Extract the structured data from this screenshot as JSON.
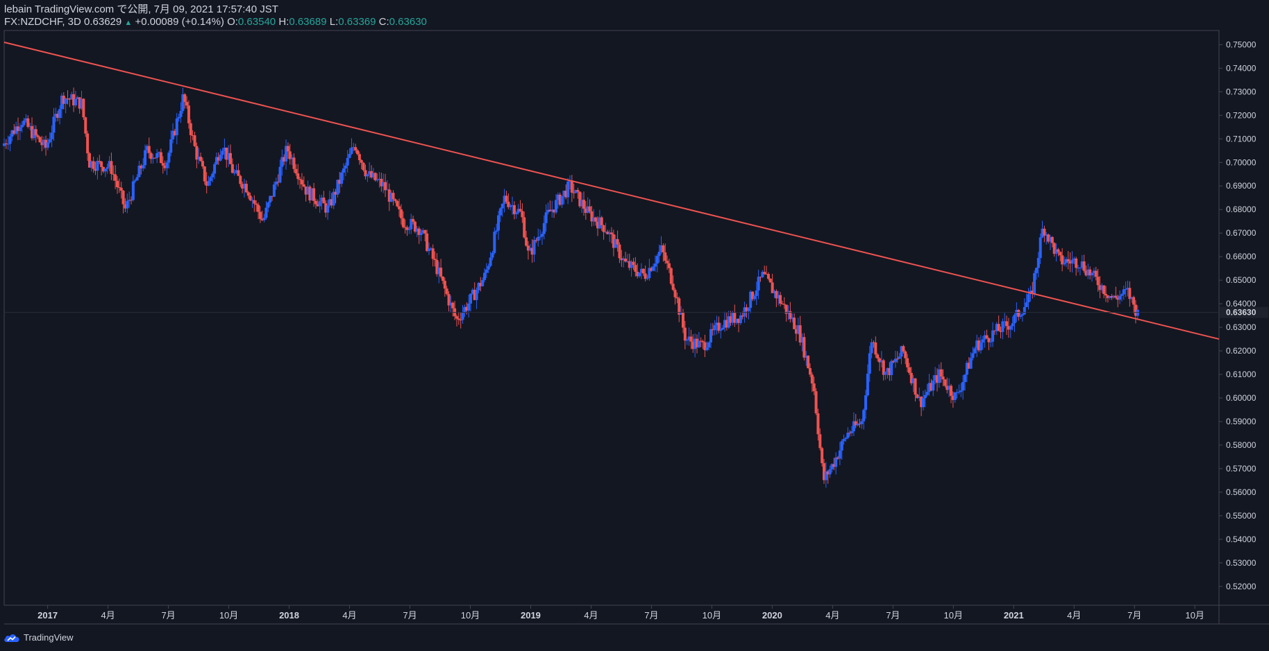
{
  "header": {
    "line1": "lebain TradingView.com で公開, 7月 09, 2021 17:57:40 JST",
    "symbol": "FX:NZDCHF, 3D 0.63629",
    "change_arrow": "▲",
    "change": "+0.00089 (+0.14%)",
    "o_label": "O:",
    "o_value": "0.63540",
    "h_label": "H:",
    "h_value": "0.63689",
    "l_label": "L:",
    "l_value": "0.63369",
    "c_label": "C:",
    "c_value": "0.63630"
  },
  "footer": {
    "logo_text": "TradingView",
    "logo_icon": "tradingview-cloud-icon"
  },
  "colors": {
    "background": "#131722",
    "up": "#2962ff",
    "down": "#ef5350",
    "trendline": "#ef5350",
    "text": "#d1d4dc",
    "accent_green": "#26a69a"
  },
  "chart_data": {
    "type": "candlestick",
    "symbol": "FX:NZDCHF",
    "interval": "3D",
    "current_price": "0.63630",
    "y_range": [
      0.512,
      0.756
    ],
    "y_ticks": [
      "0.75000",
      "0.74000",
      "0.73000",
      "0.72000",
      "0.71000",
      "0.70000",
      "0.69000",
      "0.68000",
      "0.67000",
      "0.66000",
      "0.65000",
      "0.64000",
      "0.63000",
      "0.62000",
      "0.61000",
      "0.60000",
      "0.59000",
      "0.58000",
      "0.57000",
      "0.56000",
      "0.55000",
      "0.54000",
      "0.53000",
      "0.52000"
    ],
    "x_ticks": [
      {
        "label": "2017",
        "t": 2017.0,
        "major": true
      },
      {
        "label": "4月",
        "t": 2017.25,
        "major": false
      },
      {
        "label": "7月",
        "t": 2017.5,
        "major": false
      },
      {
        "label": "10月",
        "t": 2017.75,
        "major": false
      },
      {
        "label": "2018",
        "t": 2018.0,
        "major": true
      },
      {
        "label": "4月",
        "t": 2018.25,
        "major": false
      },
      {
        "label": "7月",
        "t": 2018.5,
        "major": false
      },
      {
        "label": "10月",
        "t": 2018.75,
        "major": false
      },
      {
        "label": "2019",
        "t": 2019.0,
        "major": true
      },
      {
        "label": "4月",
        "t": 2019.25,
        "major": false
      },
      {
        "label": "7月",
        "t": 2019.5,
        "major": false
      },
      {
        "label": "10月",
        "t": 2019.75,
        "major": false
      },
      {
        "label": "2020",
        "t": 2020.0,
        "major": true
      },
      {
        "label": "4月",
        "t": 2020.25,
        "major": false
      },
      {
        "label": "7月",
        "t": 2020.5,
        "major": false
      },
      {
        "label": "10月",
        "t": 2020.75,
        "major": false
      },
      {
        "label": "2021",
        "t": 2021.0,
        "major": true
      },
      {
        "label": "4月",
        "t": 2021.25,
        "major": false
      },
      {
        "label": "7月",
        "t": 2021.5,
        "major": false
      },
      {
        "label": "10月",
        "t": 2021.75,
        "major": false
      }
    ],
    "x_range": [
      2016.82,
      2021.85
    ],
    "trendline": {
      "start": {
        "t": 2016.82,
        "price": 0.751
      },
      "end": {
        "t": 2021.85,
        "price": 0.625
      }
    },
    "price_path": [
      {
        "t": 2016.82,
        "p": 0.707
      },
      {
        "t": 2016.9,
        "p": 0.718
      },
      {
        "t": 2017.0,
        "p": 0.706
      },
      {
        "t": 2017.07,
        "p": 0.728
      },
      {
        "t": 2017.15,
        "p": 0.725
      },
      {
        "t": 2017.18,
        "p": 0.7
      },
      {
        "t": 2017.27,
        "p": 0.698
      },
      {
        "t": 2017.33,
        "p": 0.68
      },
      {
        "t": 2017.42,
        "p": 0.705
      },
      {
        "t": 2017.5,
        "p": 0.7
      },
      {
        "t": 2017.57,
        "p": 0.728
      },
      {
        "t": 2017.62,
        "p": 0.705
      },
      {
        "t": 2017.67,
        "p": 0.69
      },
      {
        "t": 2017.73,
        "p": 0.708
      },
      {
        "t": 2017.78,
        "p": 0.695
      },
      {
        "t": 2017.83,
        "p": 0.69
      },
      {
        "t": 2017.9,
        "p": 0.675
      },
      {
        "t": 2018.0,
        "p": 0.706
      },
      {
        "t": 2018.08,
        "p": 0.688
      },
      {
        "t": 2018.17,
        "p": 0.68
      },
      {
        "t": 2018.28,
        "p": 0.708
      },
      {
        "t": 2018.33,
        "p": 0.695
      },
      {
        "t": 2018.4,
        "p": 0.69
      },
      {
        "t": 2018.48,
        "p": 0.675
      },
      {
        "t": 2018.55,
        "p": 0.672
      },
      {
        "t": 2018.62,
        "p": 0.655
      },
      {
        "t": 2018.7,
        "p": 0.633
      },
      {
        "t": 2018.75,
        "p": 0.64
      },
      {
        "t": 2018.82,
        "p": 0.652
      },
      {
        "t": 2018.9,
        "p": 0.685
      },
      {
        "t": 2018.97,
        "p": 0.678
      },
      {
        "t": 2019.0,
        "p": 0.66
      },
      {
        "t": 2019.08,
        "p": 0.678
      },
      {
        "t": 2019.17,
        "p": 0.69
      },
      {
        "t": 2019.25,
        "p": 0.678
      },
      {
        "t": 2019.32,
        "p": 0.672
      },
      {
        "t": 2019.4,
        "p": 0.657
      },
      {
        "t": 2019.48,
        "p": 0.652
      },
      {
        "t": 2019.55,
        "p": 0.663
      },
      {
        "t": 2019.6,
        "p": 0.648
      },
      {
        "t": 2019.65,
        "p": 0.625
      },
      {
        "t": 2019.72,
        "p": 0.622
      },
      {
        "t": 2019.8,
        "p": 0.632
      },
      {
        "t": 2019.88,
        "p": 0.635
      },
      {
        "t": 2019.97,
        "p": 0.652
      },
      {
        "t": 2020.05,
        "p": 0.64
      },
      {
        "t": 2020.12,
        "p": 0.628
      },
      {
        "t": 2020.18,
        "p": 0.605
      },
      {
        "t": 2020.22,
        "p": 0.565
      },
      {
        "t": 2020.26,
        "p": 0.572
      },
      {
        "t": 2020.32,
        "p": 0.585
      },
      {
        "t": 2020.38,
        "p": 0.59
      },
      {
        "t": 2020.42,
        "p": 0.625
      },
      {
        "t": 2020.48,
        "p": 0.61
      },
      {
        "t": 2020.55,
        "p": 0.62
      },
      {
        "t": 2020.62,
        "p": 0.598
      },
      {
        "t": 2020.7,
        "p": 0.61
      },
      {
        "t": 2020.77,
        "p": 0.6
      },
      {
        "t": 2020.85,
        "p": 0.622
      },
      {
        "t": 2020.93,
        "p": 0.628
      },
      {
        "t": 2021.0,
        "p": 0.632
      },
      {
        "t": 2021.08,
        "p": 0.643
      },
      {
        "t": 2021.13,
        "p": 0.673
      },
      {
        "t": 2021.2,
        "p": 0.658
      },
      {
        "t": 2021.28,
        "p": 0.658
      },
      {
        "t": 2021.35,
        "p": 0.65
      },
      {
        "t": 2021.42,
        "p": 0.642
      },
      {
        "t": 2021.48,
        "p": 0.645
      },
      {
        "t": 2021.52,
        "p": 0.636
      }
    ]
  }
}
